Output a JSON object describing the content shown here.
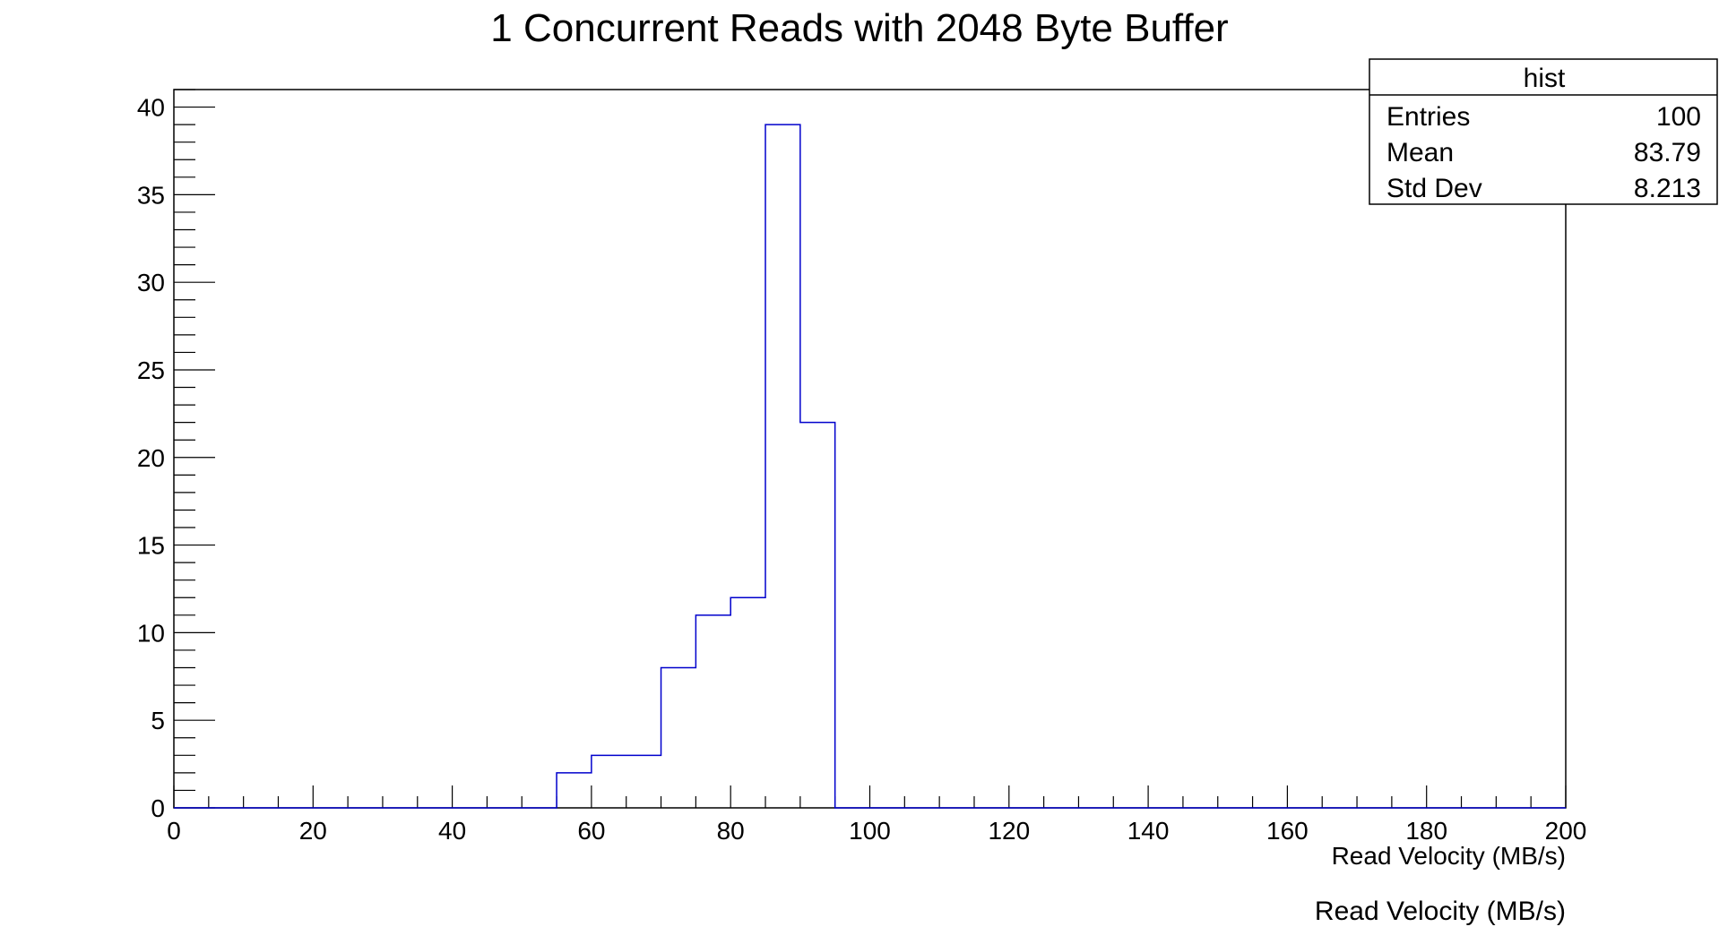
{
  "chart_data": {
    "type": "bar",
    "title": "1 Concurrent Reads with 2048 Byte Buffer",
    "xlabel": "Read Velocity (MB/s)",
    "xlabel_secondary": "Read Velocity (MB/s)",
    "ylabel": "",
    "xlim": [
      0,
      200
    ],
    "ylim": [
      0,
      41
    ],
    "x_ticks": [
      0,
      20,
      40,
      60,
      80,
      100,
      120,
      140,
      160,
      180,
      200
    ],
    "y_ticks": [
      0,
      5,
      10,
      15,
      20,
      25,
      30,
      35,
      40
    ],
    "bin_width": 5,
    "bins": [
      {
        "x_low": 55,
        "x_high": 60,
        "count": 2
      },
      {
        "x_low": 60,
        "x_high": 65,
        "count": 3
      },
      {
        "x_low": 65,
        "x_high": 70,
        "count": 3
      },
      {
        "x_low": 70,
        "x_high": 75,
        "count": 8
      },
      {
        "x_low": 75,
        "x_high": 80,
        "count": 11
      },
      {
        "x_low": 80,
        "x_high": 85,
        "count": 12
      },
      {
        "x_low": 85,
        "x_high": 90,
        "count": 39
      },
      {
        "x_low": 90,
        "x_high": 95,
        "count": 22
      }
    ],
    "line_color": "#0000cc",
    "grid": false,
    "legend": "none",
    "stats_box": {
      "placement": "top-right",
      "name": "hist",
      "rows": [
        {
          "label": "Entries",
          "value": "100"
        },
        {
          "label": "Mean",
          "value": "83.79"
        },
        {
          "label": "Std Dev",
          "value": "8.213"
        }
      ]
    }
  }
}
